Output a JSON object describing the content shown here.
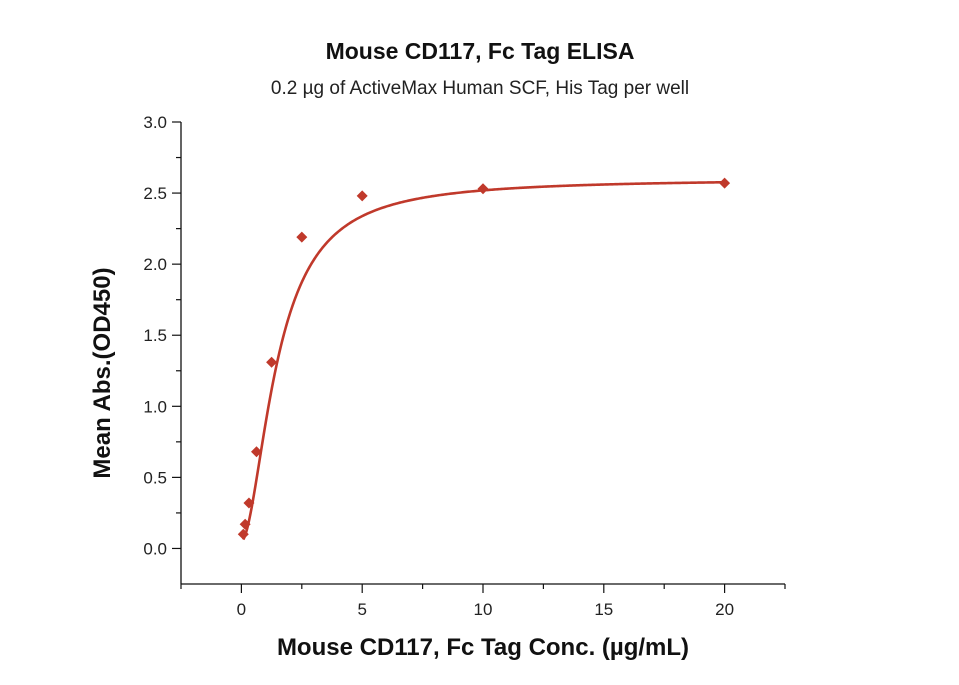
{
  "chart_data": {
    "type": "scatter",
    "title": "Mouse CD117, Fc Tag ELISA",
    "subtitle": "0.2 µg of ActiveMax Human SCF, His Tag per well",
    "xlabel": "Mouse CD117, Fc Tag Conc. (µg/mL)",
    "ylabel": "Mean Abs.(OD450)",
    "xlim": [
      -2.5,
      22.5
    ],
    "ylim": [
      -0.25,
      3.0
    ],
    "x_major_ticks": [
      0,
      5,
      10,
      15,
      20
    ],
    "x_tick_labels": [
      "0",
      "5",
      "10",
      "15",
      "20"
    ],
    "y_major_ticks": [
      0.0,
      0.5,
      1.0,
      1.5,
      2.0,
      2.5,
      3.0
    ],
    "y_tick_labels": [
      "0.0",
      "0.5",
      "1.0",
      "1.5",
      "2.0",
      "2.5",
      "3.0"
    ],
    "series": [
      {
        "name": "Mouse CD117, Fc Tag",
        "color": "#c0392b",
        "marker": "diamond",
        "x": [
          0.078,
          0.156,
          0.313,
          0.625,
          1.25,
          2.5,
          5,
          10,
          20
        ],
        "y": [
          0.1,
          0.17,
          0.32,
          0.68,
          1.31,
          2.19,
          2.48,
          2.53,
          2.57
        ]
      }
    ],
    "fit": {
      "type": "4PL",
      "bottom": 0.05,
      "top": 2.6,
      "ec50": 1.5,
      "hill": 1.8
    }
  }
}
